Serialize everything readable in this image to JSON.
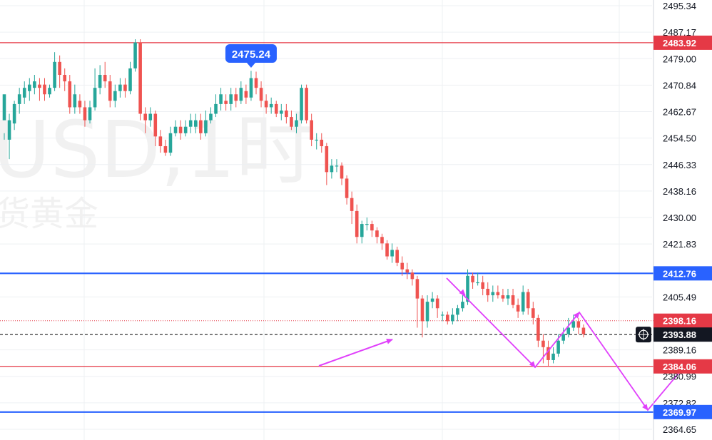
{
  "watermark": {
    "line1": "USD,1时",
    "line2": "货黄金"
  },
  "colors": {
    "up": "#26a69a",
    "down": "#ef5350",
    "red_line": "#e53946",
    "blue_line": "#2962ff",
    "arrow": "#e040fb",
    "grid": "#eef0f3",
    "axis_text": "#131722",
    "badge_text": "#ffffff"
  },
  "chart_data": {
    "type": "candlestick",
    "ylim": [
      2364.65,
      2495.34
    ],
    "y_ticks": [
      "2495.34",
      "2487.17",
      "2479.00",
      "2470.84",
      "2462.67",
      "2454.50",
      "2446.33",
      "2438.16",
      "2430.00",
      "2421.83",
      "2405.49",
      "2389.16",
      "2380.99",
      "2372.82",
      "2364.65"
    ],
    "price_labels": [
      {
        "text": "2483.92",
        "value": 2483.92,
        "style": "red"
      },
      {
        "text": "2412.76",
        "value": 2412.76,
        "style": "blue"
      },
      {
        "text": "2398.16",
        "value": 2398.16,
        "style": "red"
      },
      {
        "text": "2393.88",
        "value": 2393.88,
        "style": "dark"
      },
      {
        "text": "2384.06",
        "value": 2384.06,
        "style": "red"
      },
      {
        "text": "2369.97",
        "value": 2369.97,
        "style": "blue"
      }
    ],
    "horizontal_lines": [
      {
        "value": 2483.92,
        "style": "red-solid"
      },
      {
        "value": 2412.76,
        "style": "blue-solid"
      },
      {
        "value": 2398.16,
        "style": "red-dotted"
      },
      {
        "value": 2393.88,
        "style": "dark-dashed"
      },
      {
        "value": 2384.06,
        "style": "red-solid"
      },
      {
        "value": 2369.97,
        "style": "blue-solid"
      }
    ],
    "annotation": {
      "text": "2475.24",
      "value": 2475.24,
      "bar_index": 49
    },
    "candles": [
      [
        2460,
        2468,
        2456,
        2454
      ],
      [
        2454,
        2460,
        2462,
        2448
      ],
      [
        2459,
        2465,
        2466,
        2457
      ],
      [
        2465,
        2468,
        2470,
        2462
      ],
      [
        2467,
        2470,
        2472,
        2465
      ],
      [
        2469,
        2471,
        2473,
        2466
      ],
      [
        2470,
        2472,
        2474,
        2468
      ],
      [
        2471,
        2470,
        2473,
        2466
      ],
      [
        2471,
        2468,
        2473,
        2466
      ],
      [
        2468,
        2470,
        2471,
        2467
      ],
      [
        2470,
        2478,
        2481,
        2469
      ],
      [
        2478,
        2474,
        2480,
        2470
      ],
      [
        2474,
        2472,
        2476,
        2469
      ],
      [
        2472,
        2464,
        2474,
        2462
      ],
      [
        2464,
        2468,
        2471,
        2462
      ],
      [
        2466,
        2464,
        2468,
        2462
      ],
      [
        2464,
        2460,
        2466,
        2458
      ],
      [
        2460,
        2464,
        2466,
        2459
      ],
      [
        2464,
        2470,
        2476,
        2463
      ],
      [
        2470,
        2474,
        2477,
        2468
      ],
      [
        2474,
        2472,
        2478,
        2470
      ],
      [
        2472,
        2466,
        2474,
        2464
      ],
      [
        2466,
        2469,
        2471,
        2464
      ],
      [
        2469,
        2471,
        2473,
        2467
      ],
      [
        2471,
        2469,
        2473,
        2467
      ],
      [
        2469,
        2476,
        2478,
        2468
      ],
      [
        2476,
        2484,
        2485,
        2475
      ],
      [
        2484,
        2462,
        2485,
        2460
      ],
      [
        2462,
        2460,
        2464,
        2456
      ],
      [
        2460,
        2462,
        2464,
        2458
      ],
      [
        2462,
        2455,
        2463,
        2452
      ],
      [
        2455,
        2452,
        2457,
        2450
      ],
      [
        2452,
        2450,
        2454,
        2449
      ],
      [
        2450,
        2456,
        2458,
        2449
      ],
      [
        2456,
        2458,
        2460,
        2455
      ],
      [
        2458,
        2456,
        2460,
        2454
      ],
      [
        2456,
        2458,
        2460,
        2455
      ],
      [
        2458,
        2460,
        2462,
        2456
      ],
      [
        2458,
        2460,
        2462,
        2456
      ],
      [
        2460,
        2456,
        2462,
        2454
      ],
      [
        2456,
        2460,
        2463,
        2455
      ],
      [
        2460,
        2462,
        2464,
        2459
      ],
      [
        2462,
        2465,
        2468,
        2461
      ],
      [
        2465,
        2468,
        2470,
        2463
      ],
      [
        2466,
        2465,
        2468,
        2463
      ],
      [
        2465,
        2468,
        2470,
        2463
      ],
      [
        2468,
        2466,
        2470,
        2464
      ],
      [
        2466,
        2470,
        2472,
        2465
      ],
      [
        2469,
        2467,
        2471,
        2465
      ],
      [
        2467,
        2473,
        2475.24,
        2466
      ],
      [
        2473,
        2470,
        2475,
        2468
      ],
      [
        2470,
        2466,
        2472,
        2464
      ],
      [
        2466,
        2464,
        2468,
        2462
      ],
      [
        2464,
        2465,
        2467,
        2462
      ],
      [
        2465,
        2462,
        2466,
        2461
      ],
      [
        2462,
        2463,
        2465,
        2460
      ],
      [
        2463,
        2461,
        2465,
        2459
      ],
      [
        2461,
        2458,
        2463,
        2457
      ],
      [
        2458,
        2460,
        2462,
        2456
      ],
      [
        2460,
        2470,
        2471,
        2459
      ],
      [
        2470,
        2460,
        2471,
        2459
      ],
      [
        2460,
        2454,
        2462,
        2452
      ],
      [
        2454,
        2454,
        2456,
        2451
      ],
      [
        2454,
        2452,
        2456,
        2450
      ],
      [
        2452,
        2444,
        2453,
        2440
      ],
      [
        2444,
        2446,
        2448,
        2442
      ],
      [
        2446,
        2446,
        2448,
        2444
      ],
      [
        2446,
        2442,
        2447,
        2440
      ],
      [
        2442,
        2436,
        2443,
        2434
      ],
      [
        2436,
        2432,
        2438,
        2428
      ],
      [
        2432,
        2424,
        2434,
        2422
      ],
      [
        2424,
        2428,
        2429,
        2422
      ],
      [
        2428,
        2428,
        2430,
        2426
      ],
      [
        2428,
        2426,
        2429,
        2424
      ],
      [
        2426,
        2424,
        2427,
        2422
      ],
      [
        2424,
        2422,
        2425,
        2420
      ],
      [
        2422,
        2418,
        2423,
        2417
      ],
      [
        2418,
        2420,
        2422,
        2416
      ],
      [
        2420,
        2416,
        2421,
        2415
      ],
      [
        2416,
        2414,
        2418,
        2412
      ],
      [
        2414,
        2413,
        2416,
        2411
      ],
      [
        2413,
        2411,
        2414,
        2409
      ],
      [
        2411,
        2405,
        2412,
        2396
      ],
      [
        2405,
        2398,
        2406,
        2393
      ],
      [
        2398,
        2404,
        2406,
        2396
      ],
      [
        2404,
        2405,
        2407,
        2402
      ],
      [
        2405,
        2402,
        2406,
        2399
      ],
      [
        2400,
        2400,
        2401,
        2398
      ],
      [
        2400,
        2398,
        2401,
        2397
      ],
      [
        2398,
        2400,
        2402,
        2397
      ],
      [
        2400,
        2402,
        2403,
        2398
      ],
      [
        2402,
        2404,
        2406,
        2401
      ],
      [
        2404,
        2412,
        2414,
        2403
      ],
      [
        2412,
        2410,
        2413,
        2408
      ],
      [
        2410,
        2410,
        2413,
        2409
      ],
      [
        2410,
        2408,
        2412,
        2406
      ],
      [
        2408,
        2406,
        2410,
        2404
      ],
      [
        2406,
        2407,
        2409,
        2404
      ],
      [
        2407,
        2406,
        2409,
        2405
      ],
      [
        2406,
        2405,
        2408,
        2404
      ],
      [
        2405,
        2406,
        2408,
        2403
      ],
      [
        2406,
        2403,
        2408,
        2402
      ],
      [
        2403,
        2401,
        2405,
        2399
      ],
      [
        2401,
        2407,
        2409,
        2400
      ],
      [
        2407,
        2402,
        2408,
        2400
      ],
      [
        2402,
        2399,
        2404,
        2397
      ],
      [
        2399,
        2392,
        2400,
        2390
      ],
      [
        2392,
        2390,
        2394,
        2385
      ],
      [
        2390,
        2386,
        2392,
        2384
      ],
      [
        2386,
        2388,
        2390,
        2385
      ],
      [
        2388,
        2392,
        2394,
        2387
      ],
      [
        2392,
        2394,
        2396,
        2391
      ],
      [
        2394,
        2396,
        2399,
        2393
      ],
      [
        2396,
        2398,
        2400,
        2395
      ],
      [
        2398,
        2396,
        2399,
        2394
      ],
      [
        2396,
        2394,
        2397,
        2393
      ]
    ]
  }
}
